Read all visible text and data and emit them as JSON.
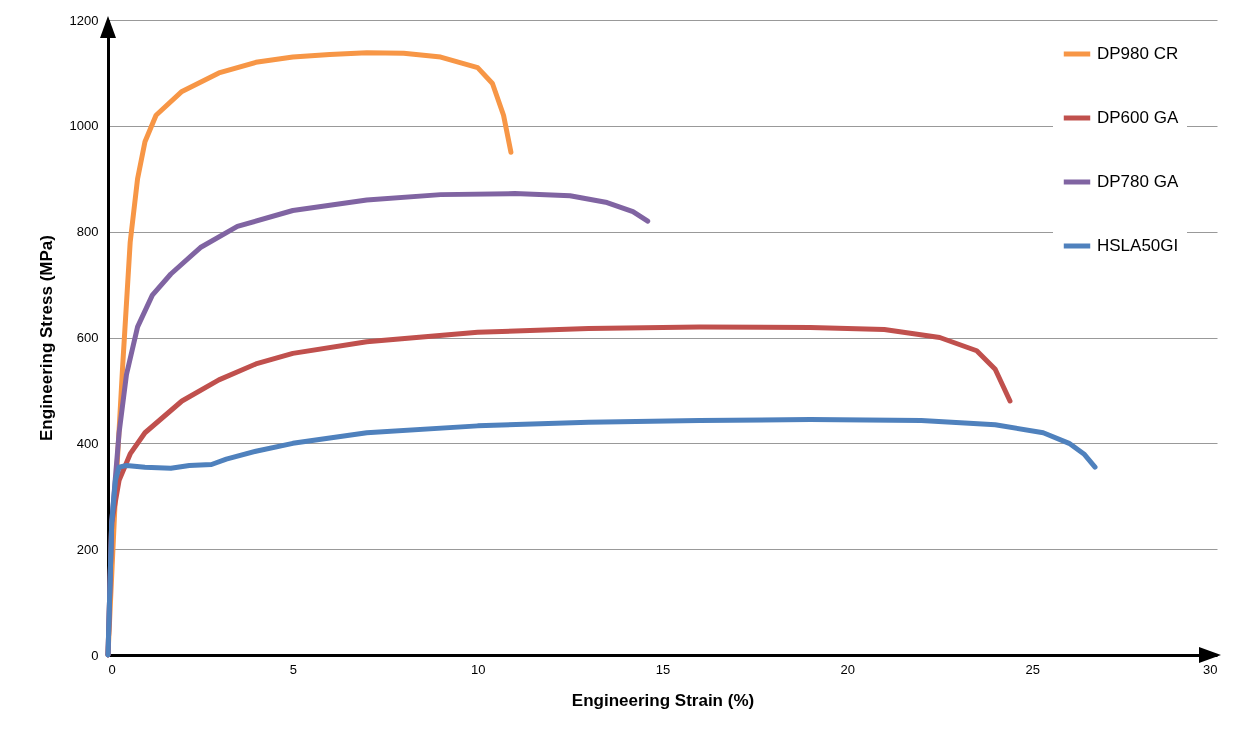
{
  "chart_data": {
    "type": "line",
    "xlabel": "Engineering Strain (%)",
    "ylabel": "Engineering Stress (MPa)",
    "xlim": [
      0,
      30
    ],
    "xticks": [
      0,
      5,
      10,
      15,
      20,
      25,
      30
    ],
    "ylim": [
      0,
      1200
    ],
    "yticks": [
      0,
      200,
      400,
      600,
      800,
      1000,
      1200
    ],
    "grid": "y",
    "legend": "top right",
    "marker": "none",
    "line_style": "solid",
    "series": [
      {
        "name": "DP980 CR",
        "color": "#f79646",
        "x": [
          0,
          0.2,
          0.4,
          0.6,
          0.8,
          1.0,
          1.3,
          2,
          3,
          4,
          5,
          6,
          7,
          8,
          9,
          10,
          10.4,
          10.7,
          10.9
        ],
        "values": [
          0,
          300,
          550,
          780,
          900,
          970,
          1020,
          1065,
          1100,
          1120,
          1130,
          1135,
          1138,
          1137,
          1130,
          1110,
          1080,
          1020,
          950
        ]
      },
      {
        "name": "DP600 GA",
        "color": "#c0504d",
        "x": [
          0,
          0.1,
          0.3,
          0.6,
          1,
          2,
          3,
          4,
          5,
          7,
          10,
          13,
          16,
          19,
          21,
          22.5,
          23.5,
          24,
          24.4
        ],
        "values": [
          0,
          250,
          330,
          380,
          420,
          480,
          520,
          550,
          570,
          592,
          610,
          617,
          620,
          619,
          615,
          600,
          575,
          540,
          480
        ]
      },
      {
        "name": "DP780 GA",
        "color": "#8064a2",
        "x": [
          0,
          0.1,
          0.3,
          0.5,
          0.8,
          1.2,
          1.7,
          2.5,
          3.5,
          5,
          7,
          9,
          11,
          12.5,
          13.5,
          14.2,
          14.6
        ],
        "values": [
          0,
          250,
          420,
          530,
          620,
          680,
          720,
          770,
          810,
          840,
          860,
          870,
          872,
          868,
          855,
          838,
          820
        ]
      },
      {
        "name": "HSLA50GI",
        "color": "#4f81bd",
        "x": [
          0,
          0.1,
          0.2,
          0.3,
          0.5,
          1,
          1.7,
          2.2,
          2.8,
          3.2,
          4,
          5,
          7,
          10,
          13,
          16,
          19,
          22,
          24,
          25.3,
          26,
          26.4,
          26.7
        ],
        "values": [
          0,
          250,
          330,
          355,
          358,
          355,
          353,
          358,
          360,
          370,
          385,
          400,
          420,
          433,
          440,
          443,
          445,
          443,
          435,
          420,
          400,
          380,
          355
        ]
      }
    ]
  }
}
